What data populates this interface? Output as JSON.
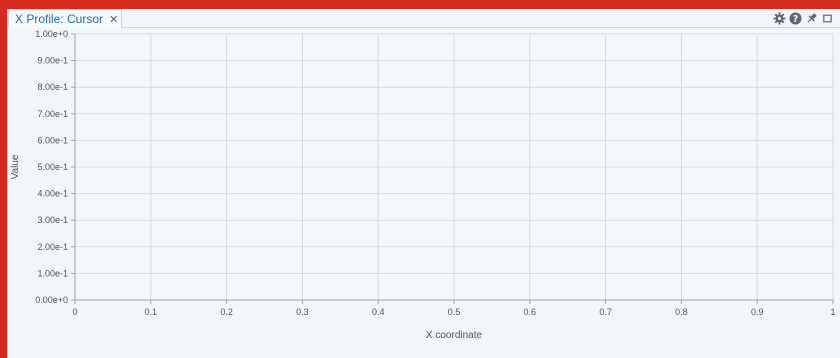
{
  "tab": {
    "label": "X Profile: Cursor",
    "close_glyph": "✕"
  },
  "toolbar": {
    "icons": [
      "gear-icon",
      "help-icon",
      "pin-icon",
      "maximize-icon"
    ]
  },
  "colors": {
    "frame": "#d42b1e",
    "panel_bg": "#f2f6fa",
    "grid": "#d3dbe2",
    "tab_text": "#1c6fa8",
    "icon": "#5e6873"
  },
  "chart_data": {
    "type": "line",
    "xlabel": "X coordinate",
    "ylabel": "Value",
    "xlim": [
      0,
      1
    ],
    "ylim": [
      0,
      1
    ],
    "x_ticks": [
      0,
      0.1,
      0.2,
      0.3,
      0.4,
      0.5,
      0.6,
      0.7,
      0.8,
      0.9,
      1
    ],
    "x_tick_labels": [
      "0",
      "0.1",
      "0.2",
      "0.3",
      "0.4",
      "0.5",
      "0.6",
      "0.7",
      "0.8",
      "0.9",
      "1"
    ],
    "y_ticks": [
      0,
      0.1,
      0.2,
      0.3,
      0.4,
      0.5,
      0.6,
      0.7,
      0.8,
      0.9,
      1
    ],
    "y_tick_labels": [
      "0.00e+0",
      "1.00e-1",
      "2.00e-1",
      "3.00e-1",
      "4.00e-1",
      "5.00e-1",
      "6.00e-1",
      "7.00e-1",
      "8.00e-1",
      "9.00e-1",
      "1.00e+0"
    ],
    "grid": true,
    "series": []
  }
}
